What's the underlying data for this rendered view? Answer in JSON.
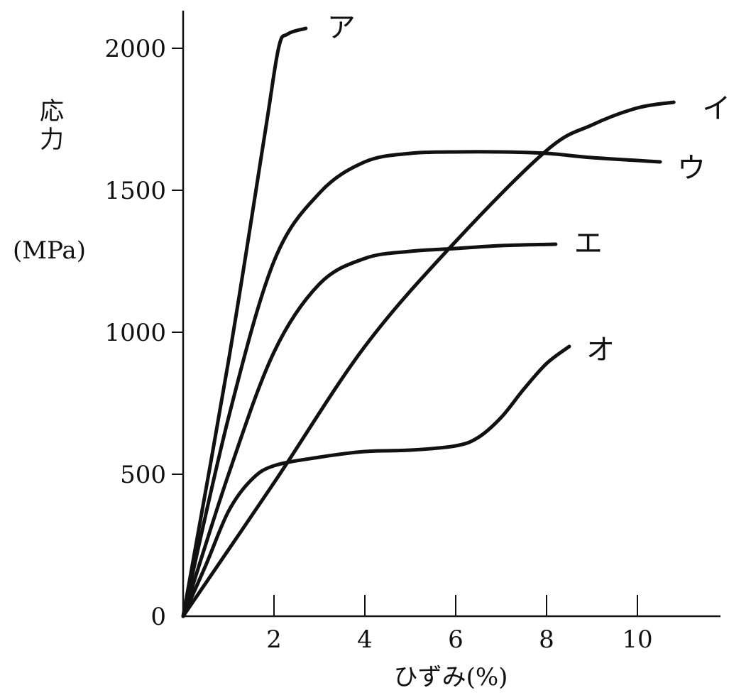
{
  "chart_data": {
    "type": "line",
    "title": "",
    "xlabel": "ひずみ(%)",
    "ylabel": [
      "応",
      "力"
    ],
    "yunit": "(MPa)",
    "xlim": [
      0,
      12
    ],
    "ylim": [
      0,
      2000
    ],
    "x_ticks": [
      2,
      4,
      6,
      8,
      10
    ],
    "y_ticks": [
      0,
      500,
      1000,
      1500,
      2000
    ],
    "grid": false,
    "legend": "none",
    "series": [
      {
        "name": "ア",
        "x": [
          0,
          1.0,
          1.8,
          2.1,
          2.3,
          2.7
        ],
        "y": [
          0,
          900,
          1700,
          2000,
          2050,
          2070
        ]
      },
      {
        "name": "イ",
        "x": [
          0,
          2,
          4,
          6,
          8,
          9,
          10,
          10.8
        ],
        "y": [
          0,
          470,
          950,
          1320,
          1640,
          1730,
          1790,
          1810
        ]
      },
      {
        "name": "ウ",
        "x": [
          0,
          1,
          2,
          3,
          4,
          5,
          6,
          7,
          8,
          9,
          10.5
        ],
        "y": [
          0,
          700,
          1250,
          1490,
          1600,
          1630,
          1635,
          1635,
          1630,
          1615,
          1600
        ]
      },
      {
        "name": "エ",
        "x": [
          0,
          1,
          2,
          3,
          4,
          5,
          6,
          7,
          8.2
        ],
        "y": [
          0,
          500,
          930,
          1170,
          1260,
          1285,
          1295,
          1305,
          1310
        ]
      },
      {
        "name": "オ",
        "x": [
          0,
          0.5,
          1,
          1.5,
          2,
          3,
          4,
          5,
          6,
          6.5,
          7,
          7.5,
          8,
          8.5
        ],
        "y": [
          0,
          180,
          370,
          480,
          530,
          560,
          580,
          585,
          600,
          630,
          700,
          800,
          890,
          950
        ]
      }
    ]
  }
}
